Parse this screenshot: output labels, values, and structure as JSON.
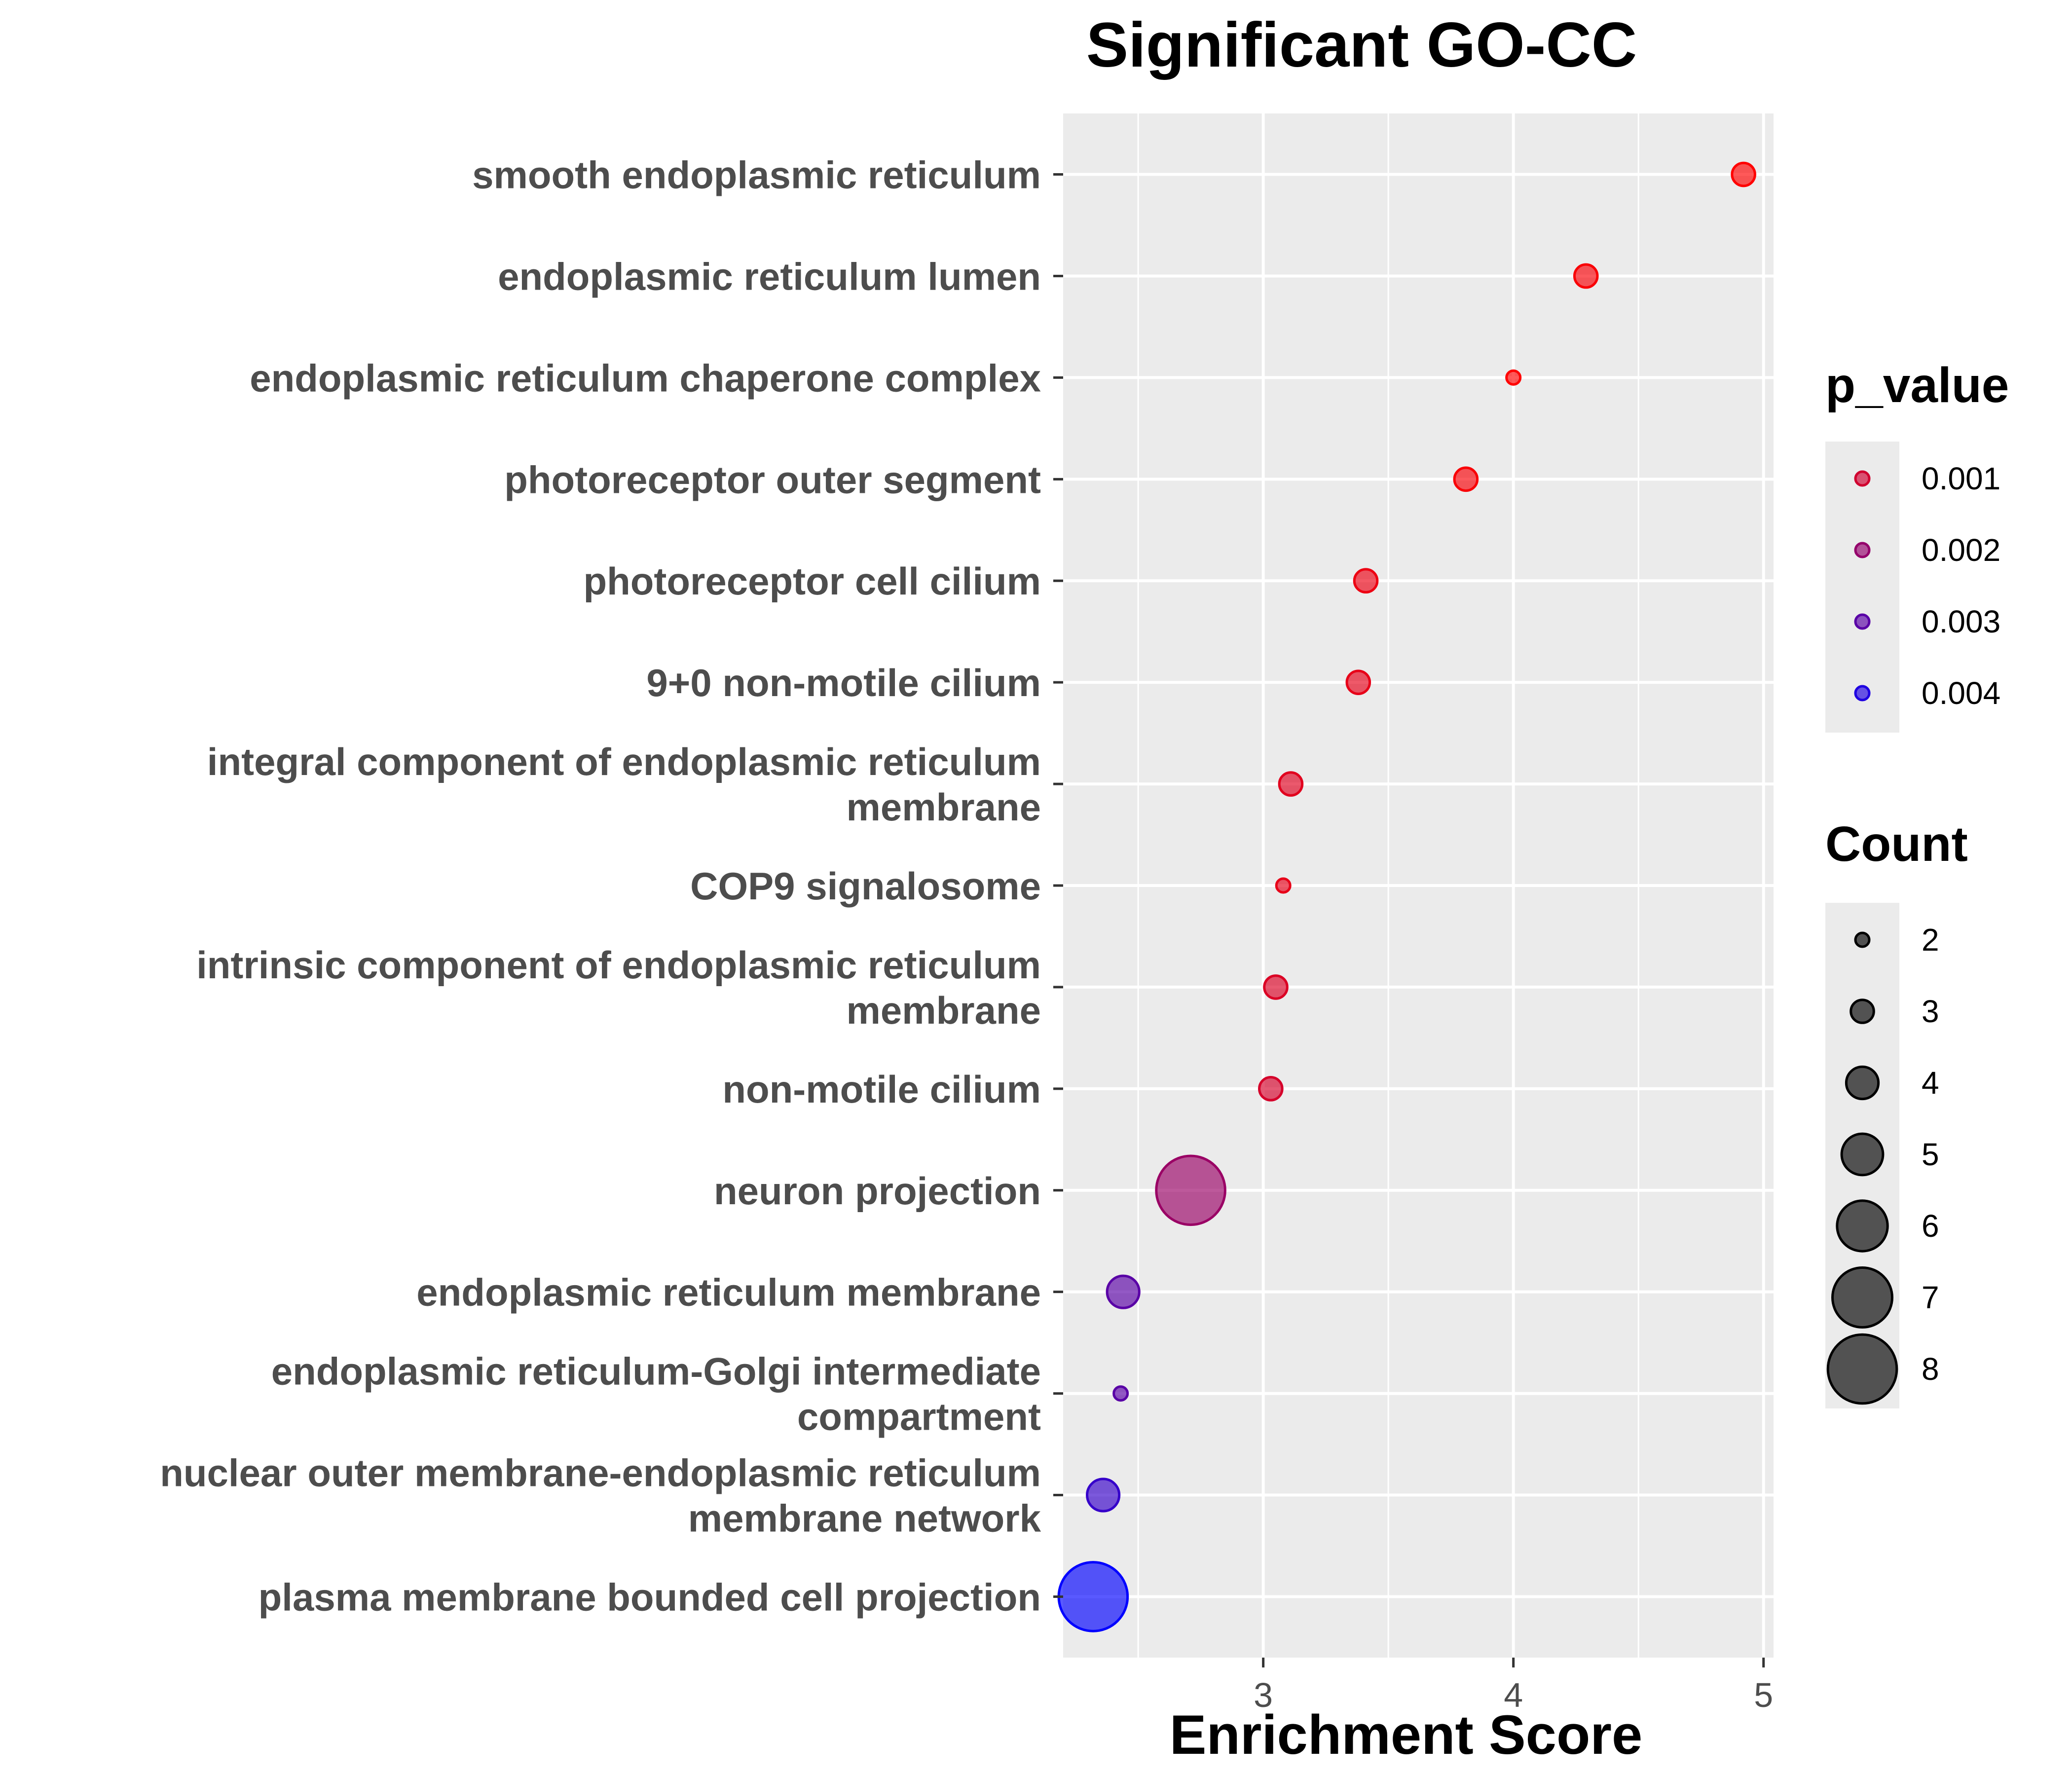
{
  "chart_data": {
    "type": "scatter",
    "title": "Significant GO-CC",
    "xlabel": "Enrichment Score",
    "ylabel": "",
    "xlim": [
      2.2,
      5.04
    ],
    "xticks": [
      3,
      4,
      5
    ],
    "grid": true,
    "legend_placement": "right",
    "points": [
      {
        "term": [
          "smooth endoplasmic reticulum"
        ],
        "x": 4.92,
        "count": 3,
        "p_value": 0.0002
      },
      {
        "term": [
          "endoplasmic reticulum lumen"
        ],
        "x": 4.29,
        "count": 3,
        "p_value": 0.0003
      },
      {
        "term": [
          "endoplasmic reticulum chaperone complex"
        ],
        "x": 4.0,
        "count": 2,
        "p_value": 0.0002
      },
      {
        "term": [
          "photoreceptor outer segment"
        ],
        "x": 3.81,
        "count": 3,
        "p_value": 0.0003
      },
      {
        "term": [
          "photoreceptor cell cilium"
        ],
        "x": 3.41,
        "count": 3,
        "p_value": 0.0005
      },
      {
        "term": [
          "9+0 non-motile cilium"
        ],
        "x": 3.38,
        "count": 3,
        "p_value": 0.0006
      },
      {
        "term": [
          "integral component of endoplasmic reticulum",
          "membrane"
        ],
        "x": 3.11,
        "count": 3,
        "p_value": 0.0007
      },
      {
        "term": [
          "COP9 signalosome"
        ],
        "x": 3.08,
        "count": 2,
        "p_value": 0.0006
      },
      {
        "term": [
          "intrinsic component of endoplasmic reticulum",
          "membrane"
        ],
        "x": 3.05,
        "count": 3,
        "p_value": 0.0008
      },
      {
        "term": [
          "non-motile cilium"
        ],
        "x": 3.03,
        "count": 3,
        "p_value": 0.0009
      },
      {
        "term": [
          "neuron projection"
        ],
        "x": 2.71,
        "count": 8,
        "p_value": 0.0019
      },
      {
        "term": [
          "endoplasmic reticulum membrane"
        ],
        "x": 2.44,
        "count": 4,
        "p_value": 0.003
      },
      {
        "term": [
          "endoplasmic reticulum-Golgi intermediate",
          "compartment"
        ],
        "x": 2.43,
        "count": 2,
        "p_value": 0.003
      },
      {
        "term": [
          "nuclear outer membrane-endoplasmic reticulum",
          "membrane network"
        ],
        "x": 2.36,
        "count": 4,
        "p_value": 0.0036
      },
      {
        "term": [
          "plasma membrane bounded cell projection"
        ],
        "x": 2.32,
        "count": 8,
        "p_value": 0.0045
      }
    ],
    "color_legend": {
      "title": "p_value",
      "entries": [
        {
          "label": "0.001",
          "value": 0.001
        },
        {
          "label": "0.002",
          "value": 0.002
        },
        {
          "label": "0.003",
          "value": 0.003
        },
        {
          "label": "0.004",
          "value": 0.004
        }
      ],
      "color_low": "#FF0000",
      "color_high": "#0000FF",
      "range": [
        0.0002,
        0.0045
      ]
    },
    "size_legend": {
      "title": "Count",
      "entries": [
        {
          "label": "2",
          "value": 2
        },
        {
          "label": "3",
          "value": 3
        },
        {
          "label": "4",
          "value": 4
        },
        {
          "label": "5",
          "value": 5
        },
        {
          "label": "6",
          "value": 6
        },
        {
          "label": "7",
          "value": 7
        },
        {
          "label": "8",
          "value": 8
        }
      ]
    },
    "colors": {
      "panel_background": "#EBEBEB",
      "grid": "#FFFFFF",
      "text_dark": "#000000",
      "text_axis": "#4D4D4D",
      "size_legend_fill": "#000000"
    }
  }
}
